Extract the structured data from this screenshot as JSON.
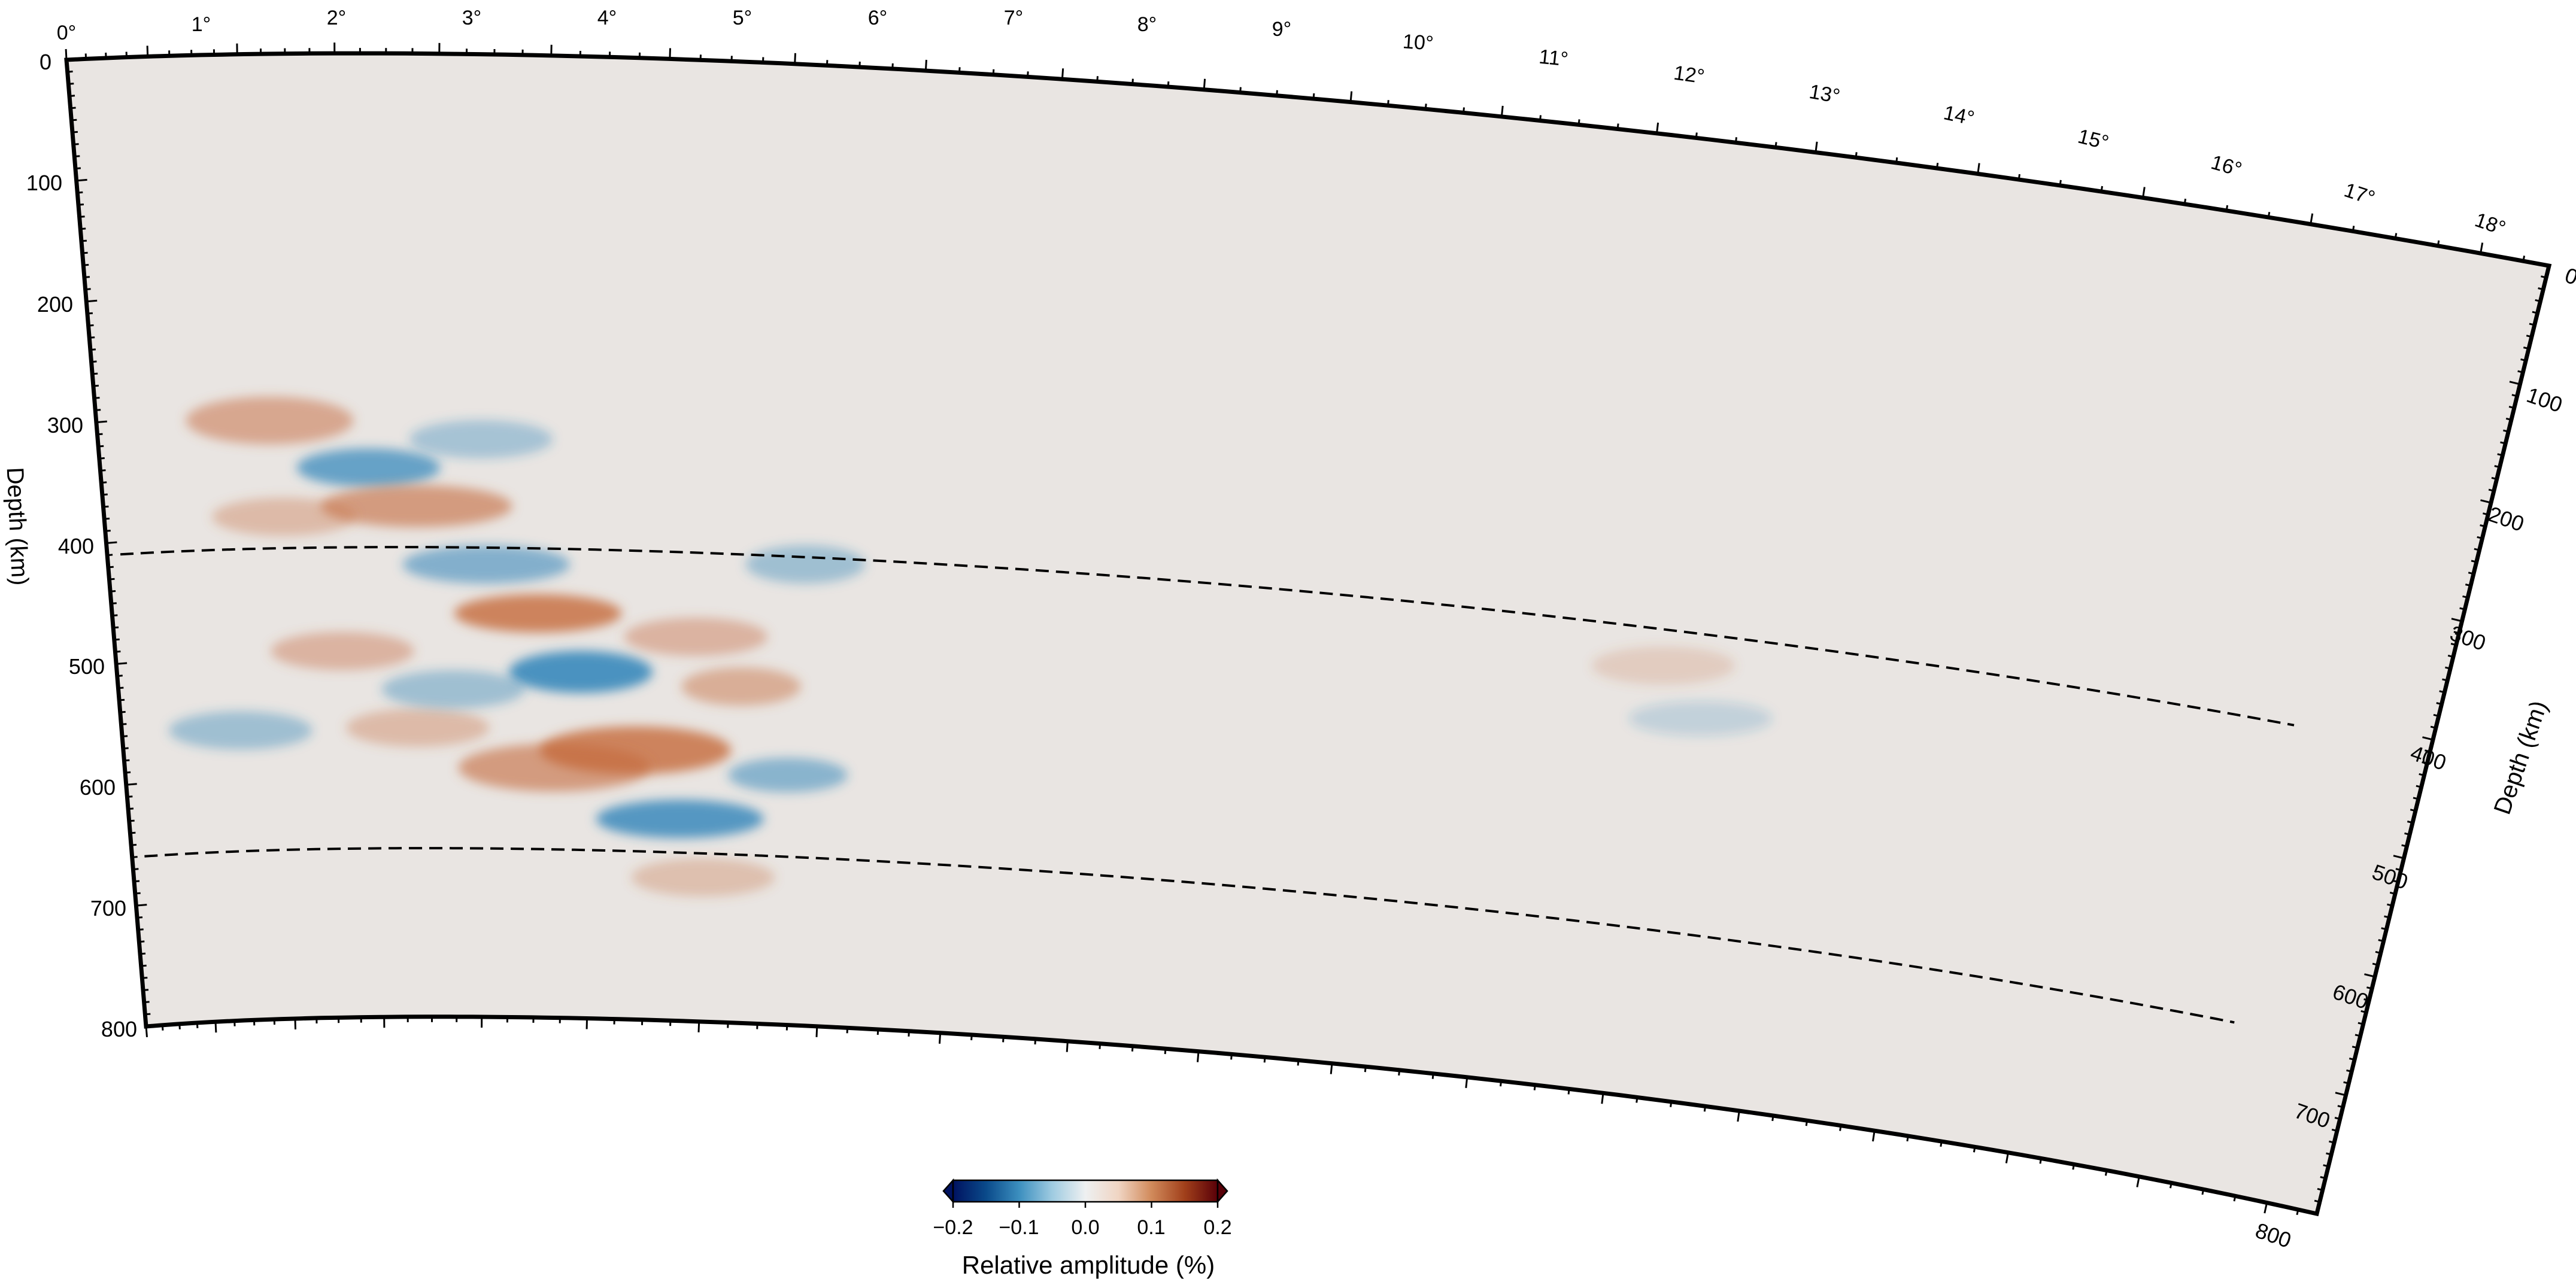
{
  "figure": {
    "type": "curved depth cross-section",
    "panel_fill": "#e9e5e2",
    "frame_color": "#000000"
  },
  "top_axis": {
    "tick_labels": [
      "0°",
      "1°",
      "2°",
      "3°",
      "4°",
      "5°",
      "6°",
      "7°",
      "8°",
      "9°",
      "10°",
      "11°",
      "12°",
      "13°",
      "14°",
      "15°",
      "16°",
      "17°",
      "18°"
    ],
    "range_deg": [
      0,
      18.4
    ]
  },
  "left_axis": {
    "title": "Depth (km)",
    "tick_labels": [
      "0",
      "100",
      "200",
      "300",
      "400",
      "500",
      "600",
      "700",
      "800"
    ],
    "range_km": [
      0,
      800
    ]
  },
  "right_axis": {
    "title": "Depth (km)",
    "tick_labels": [
      "0",
      "100",
      "200",
      "300",
      "400",
      "500",
      "600",
      "700",
      "800"
    ],
    "range_km": [
      0,
      800
    ]
  },
  "discontinuities": [
    {
      "name": "410 km",
      "depth_km": 410,
      "style": "dashed",
      "color": "#000000"
    },
    {
      "name": "660 km",
      "depth_km": 660,
      "style": "dashed",
      "color": "#000000"
    }
  ],
  "colorbar": {
    "title": "Relative amplitude (%)",
    "tick_labels": [
      "−0.2",
      "−0.1",
      "0.0",
      "0.1",
      "0.2"
    ],
    "range": [
      -0.2,
      0.2
    ],
    "colormap": "vik",
    "colors": [
      "#001260",
      "#0a4a8a",
      "#3c8fbf",
      "#9fcbe1",
      "#eef0f1",
      "#f0d5c3",
      "#d18a5b",
      "#a1401b",
      "#590008"
    ],
    "triangles": "both ends"
  },
  "anomalies": {
    "positive_color": "#c56a3c",
    "negative_color": "#2e84ba"
  }
}
